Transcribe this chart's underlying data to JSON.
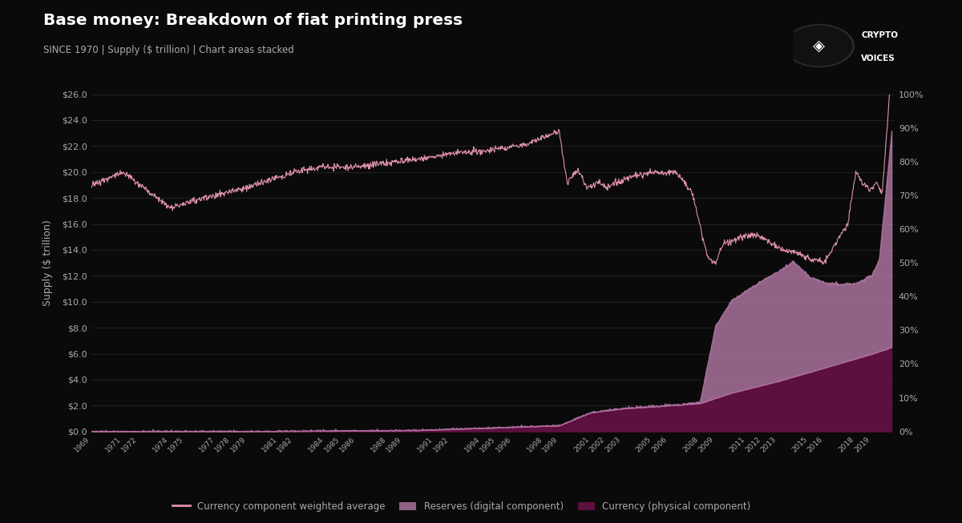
{
  "title": "Base money: Breakdown of fiat printing press",
  "subtitle": "SINCE 1970 | Supply ($ trillion) | Chart areas stacked",
  "ylabel": "Supply ($ trillion)",
  "background_color": "#0a0a0a",
  "text_color": "#aaaaaa",
  "grid_color": "#2a2a2a",
  "line_color": "#e090b0",
  "reserves_fill_color": "#c080b0",
  "currency_fill_color": "#5c1040",
  "ylim_left": [
    0,
    26
  ],
  "ylim_right": [
    0,
    1.0
  ],
  "yticks_left": [
    0.0,
    2.0,
    4.0,
    6.0,
    8.0,
    10.0,
    12.0,
    14.0,
    16.0,
    18.0,
    20.0,
    22.0,
    24.0,
    26.0
  ],
  "yticks_right": [
    0.0,
    0.1,
    0.2,
    0.3,
    0.4,
    0.5,
    0.6,
    0.7,
    0.8,
    0.9,
    1.0
  ],
  "legend_labels": [
    "Currency component weighted average",
    "Reserves (digital component)",
    "Currency (physical component)"
  ],
  "xtick_years": [
    1969,
    1971,
    1972,
    1974,
    1975,
    1977,
    1978,
    1979,
    1981,
    1982,
    1984,
    1985,
    1986,
    1988,
    1989,
    1991,
    1992,
    1994,
    1995,
    1996,
    1998,
    1999,
    2001,
    2002,
    2003,
    2005,
    2006,
    2008,
    2009,
    2011,
    2012,
    2013,
    2015,
    2016,
    2018,
    2019
  ]
}
